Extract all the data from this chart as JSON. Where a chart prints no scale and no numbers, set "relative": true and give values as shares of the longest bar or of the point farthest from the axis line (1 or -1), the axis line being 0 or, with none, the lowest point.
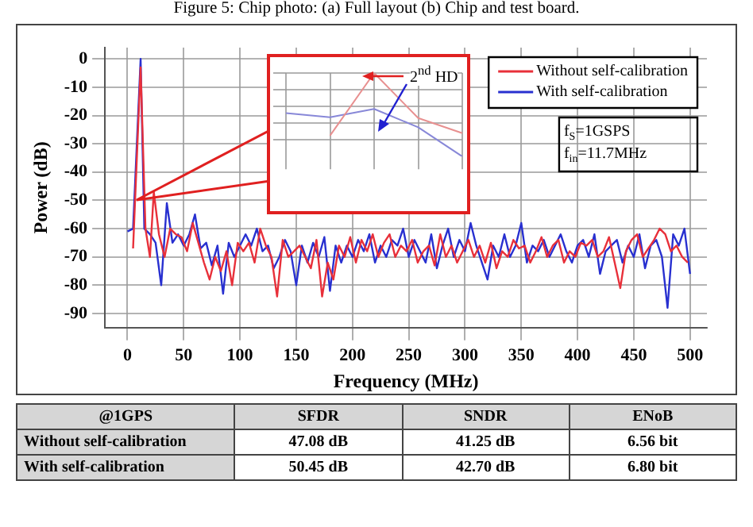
{
  "chart_data": [
    {
      "type": "line",
      "xlabel": "Frequency (MHz)",
      "ylabel": "Power (dB)",
      "xlim": [
        -20,
        515
      ],
      "ylim": [
        -95,
        4
      ],
      "xticks": [
        0,
        50,
        100,
        150,
        200,
        250,
        300,
        350,
        400,
        450,
        500
      ],
      "yticks": [
        0,
        -10,
        -20,
        -30,
        -40,
        -50,
        -60,
        -70,
        -80,
        -90
      ],
      "grid": true,
      "legend": "top right",
      "line_style": "solid",
      "annotations": [
        "Figure 5: Chip photo: (a) Full layout (b) Chip and test board.",
        "f$_{S}$=1GSPS",
        "f$_{in}$=11.7MHz",
        "@1GPS",
        "SFDR",
        "SNDR",
        "ENoB",
        "Without self-calibration",
        "47.08 dB",
        "41.25 dB",
        "6.56 bit",
        "With self-calibration",
        "50.45 dB",
        "42.70 dB",
        "6.80 bit"
      ],
      "series": [
        {
          "name": "Without self-calibration",
          "color": "#e8303a",
          "x": [
            5,
            11.7,
            16,
            20,
            23.4,
            28,
            33,
            38,
            43,
            48,
            53,
            58,
            63,
            68,
            73,
            78,
            83,
            88,
            93,
            98,
            103,
            108,
            113,
            118,
            123,
            128,
            133,
            138,
            143,
            148,
            153,
            158,
            163,
            168,
            173,
            178,
            183,
            188,
            193,
            198,
            203,
            208,
            213,
            218,
            223,
            228,
            233,
            238,
            243,
            248,
            253,
            258,
            263,
            268,
            273,
            278,
            283,
            288,
            293,
            298,
            303,
            308,
            313,
            318,
            323,
            328,
            333,
            338,
            343,
            348,
            353,
            358,
            363,
            368,
            373,
            378,
            383,
            388,
            393,
            398,
            403,
            408,
            413,
            418,
            423,
            428,
            433,
            438,
            443,
            448,
            453,
            458,
            463,
            468,
            473,
            478,
            483,
            488,
            493,
            498
          ],
          "values": [
            -67,
            -3,
            -60,
            -70,
            -47,
            -62,
            -70,
            -60,
            -62,
            -63,
            -68,
            -58,
            -65,
            -72,
            -78,
            -70,
            -75,
            -68,
            -80,
            -65,
            -68,
            -65,
            -72,
            -60,
            -66,
            -70,
            -84,
            -64,
            -70,
            -68,
            -66,
            -70,
            -74,
            -64,
            -84,
            -72,
            -78,
            -66,
            -70,
            -63,
            -72,
            -64,
            -68,
            -62,
            -70,
            -65,
            -62,
            -70,
            -66,
            -68,
            -64,
            -72,
            -68,
            -66,
            -73,
            -62,
            -70,
            -66,
            -72,
            -68,
            -64,
            -70,
            -66,
            -72,
            -65,
            -74,
            -68,
            -70,
            -64,
            -67,
            -66,
            -72,
            -68,
            -63,
            -70,
            -66,
            -64,
            -72,
            -68,
            -70,
            -65,
            -66,
            -64,
            -70,
            -68,
            -63,
            -72,
            -81,
            -68,
            -64,
            -62,
            -70,
            -67,
            -64,
            -60,
            -62,
            -68,
            -66,
            -70,
            -72
          ]
        },
        {
          "name": "With self-calibration",
          "color": "#2830d0",
          "x": [
            0,
            5,
            11.7,
            15,
            20,
            25,
            30,
            35,
            40,
            45,
            50,
            55,
            60,
            65,
            70,
            75,
            80,
            85,
            90,
            95,
            100,
            105,
            110,
            115,
            120,
            125,
            130,
            135,
            140,
            145,
            150,
            155,
            160,
            165,
            170,
            175,
            180,
            185,
            190,
            195,
            200,
            205,
            210,
            215,
            220,
            225,
            230,
            235,
            240,
            245,
            250,
            255,
            260,
            265,
            270,
            275,
            280,
            285,
            290,
            295,
            300,
            305,
            310,
            315,
            320,
            325,
            330,
            335,
            340,
            345,
            350,
            355,
            360,
            365,
            370,
            375,
            380,
            385,
            390,
            395,
            400,
            405,
            410,
            415,
            420,
            425,
            430,
            435,
            440,
            445,
            450,
            455,
            460,
            465,
            470,
            475,
            480,
            485,
            490,
            495,
            500
          ],
          "values": [
            -61,
            -60,
            0,
            -60,
            -62,
            -65,
            -80,
            -51,
            -65,
            -62,
            -66,
            -62,
            -55,
            -67,
            -65,
            -73,
            -66,
            -83,
            -65,
            -70,
            -66,
            -62,
            -66,
            -60,
            -68,
            -66,
            -74,
            -70,
            -64,
            -68,
            -80,
            -66,
            -72,
            -65,
            -70,
            -63,
            -82,
            -66,
            -72,
            -66,
            -70,
            -64,
            -68,
            -62,
            -72,
            -66,
            -70,
            -64,
            -66,
            -60,
            -70,
            -64,
            -68,
            -72,
            -62,
            -74,
            -66,
            -60,
            -70,
            -64,
            -68,
            -58,
            -66,
            -72,
            -78,
            -66,
            -70,
            -62,
            -70,
            -66,
            -58,
            -72,
            -66,
            -68,
            -64,
            -70,
            -66,
            -62,
            -68,
            -72,
            -66,
            -64,
            -70,
            -62,
            -76,
            -68,
            -66,
            -64,
            -72,
            -66,
            -70,
            -62,
            -74,
            -66,
            -64,
            -70,
            -88,
            -62,
            -66,
            -60,
            -76
          ]
        }
      ]
    },
    {
      "type": "line",
      "relative": true,
      "categories": [
        null,
        null,
        null,
        null,
        null
      ],
      "grid": true,
      "annotations": [
        "2$^{nd}$ HD"
      ],
      "series": [
        {
          "color": "#e89090",
          "values": [
            null,
            0.25,
            1,
            0.46,
            0.28
          ]
        },
        {
          "color": "#8888d8",
          "values": [
            0.52,
            0.47,
            0.57,
            0.35,
            0
          ]
        }
      ]
    }
  ]
}
